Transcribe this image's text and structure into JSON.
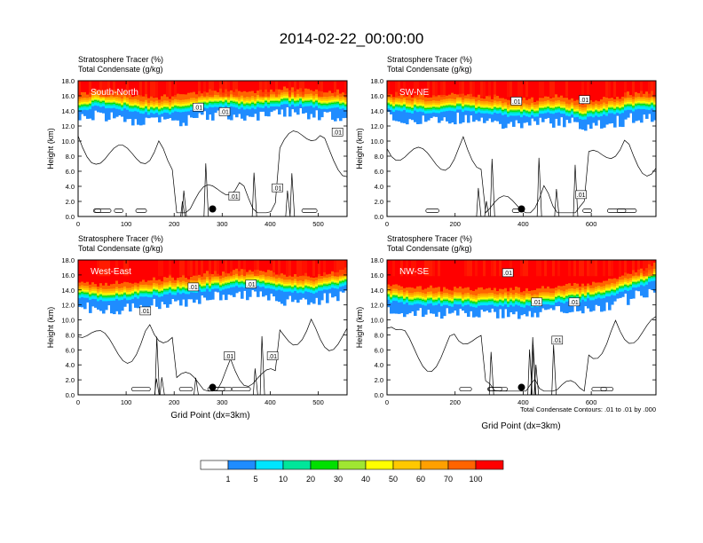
{
  "page": {
    "title": "2014-02-22_00:00:00",
    "contour_note": "Total Condensate Contours: .01 to .01 by .000",
    "y_axis_label": "Height (km)",
    "x_axis_label": "Grid Point (dx=3km)"
  },
  "legend": {
    "colors": [
      "#ffffff",
      "#1f8cff",
      "#00e5ff",
      "#00e69a",
      "#00e000",
      "#a0e632",
      "#ffff00",
      "#ffc800",
      "#ffa000",
      "#ff6400",
      "#ff0000"
    ],
    "labels": [
      "1",
      "5",
      "10",
      "20",
      "30",
      "40",
      "50",
      "60",
      "70",
      "100"
    ]
  },
  "chart_data": [
    {
      "type": "heatmap",
      "label": "South-North",
      "subtitle_line1": "Stratosphere Tracer   (%)",
      "subtitle_line2": "Total Condensate   (g/kg)",
      "ylabel": "Height (km)",
      "xlabel": "",
      "xlim": [
        0,
        560
      ],
      "ylim": [
        0,
        18
      ],
      "xticks": [
        "0",
        "100",
        "200",
        "300",
        "400",
        "500"
      ],
      "xtick_values": [
        0,
        100,
        200,
        300,
        400,
        500
      ],
      "yticks": [
        "0.0",
        "2.0",
        "4.0",
        "6.0",
        "8.0",
        "10.0",
        "12.0",
        "14.0",
        "16.0",
        "18.0"
      ],
      "tracer_front_km": [
        14.2,
        14.8,
        14.5,
        14.2,
        13.8,
        13.9,
        14.1,
        14.6,
        14.8,
        14.5,
        14.6,
        14.8,
        15.0,
        14.8,
        14.5,
        14.5
      ],
      "contour_labels": [
        {
          "text": ".01",
          "x": 250,
          "y": 14.5
        },
        {
          "text": ".01",
          "x": 305,
          "y": 13.9
        },
        {
          "text": ".01",
          "x": 540,
          "y": 11.2
        },
        {
          "text": ".01",
          "x": 325,
          "y": 2.7
        },
        {
          "text": ".01",
          "x": 415,
          "y": 3.8
        }
      ],
      "marker": {
        "x": 280,
        "y": 1.0
      }
    },
    {
      "type": "heatmap",
      "label": "SW-NE",
      "subtitle_line1": "Stratosphere Tracer   (%)",
      "subtitle_line2": "Total Condensate   (g/kg)",
      "ylabel": "Height (km)",
      "xlabel": "",
      "xlim": [
        0,
        790
      ],
      "ylim": [
        0,
        18
      ],
      "xticks": [
        "0",
        "200",
        "400",
        "600"
      ],
      "xtick_values": [
        0,
        200,
        400,
        600
      ],
      "yticks": [
        "0.0",
        "2.0",
        "4.0",
        "6.0",
        "8.0",
        "10.0",
        "12.0",
        "14.0",
        "16.0",
        "18.0"
      ],
      "tracer_front_km": [
        14.3,
        14.1,
        14.0,
        14.1,
        14.2,
        14.0,
        13.9,
        13.5,
        13.4,
        14.0,
        13.7,
        13.2,
        13.5,
        14.0,
        14.3,
        14.4
      ],
      "contour_labels": [
        {
          "text": ".01",
          "x": 380,
          "y": 15.3
        },
        {
          "text": ".01",
          "x": 580,
          "y": 15.5
        },
        {
          "text": ".01",
          "x": 570,
          "y": 2.9
        }
      ],
      "marker": {
        "x": 395,
        "y": 1.0
      }
    },
    {
      "type": "heatmap",
      "label": "West-East",
      "subtitle_line1": "Stratosphere Tracer   (%)",
      "subtitle_line2": "Total Condensate   (g/kg)",
      "ylabel": "Height (km)",
      "xlabel": "Grid Point (dx=3km)",
      "xlim": [
        0,
        560
      ],
      "ylim": [
        0,
        18
      ],
      "xticks": [
        "0",
        "100",
        "200",
        "300",
        "400",
        "500"
      ],
      "xtick_values": [
        0,
        100,
        200,
        300,
        400,
        500
      ],
      "yticks": [
        "0.0",
        "2.0",
        "4.0",
        "6.0",
        "8.0",
        "10.0",
        "12.0",
        "14.0",
        "16.0",
        "18.0"
      ],
      "tracer_front_km": [
        13.2,
        12.8,
        12.9,
        13.0,
        13.3,
        13.6,
        13.8,
        14.1,
        14.3,
        14.6,
        14.8,
        14.3,
        13.9,
        13.8,
        14.2,
        14.8
      ],
      "contour_labels": [
        {
          "text": ".01",
          "x": 240,
          "y": 14.4
        },
        {
          "text": ".01",
          "x": 360,
          "y": 14.8
        },
        {
          "text": ".01",
          "x": 140,
          "y": 11.2
        },
        {
          "text": ".01",
          "x": 315,
          "y": 5.2
        },
        {
          "text": ".01",
          "x": 405,
          "y": 5.2
        }
      ],
      "marker": {
        "x": 280,
        "y": 1.0
      }
    },
    {
      "type": "heatmap",
      "label": "NW-SE",
      "subtitle_line1": "Stratosphere Tracer   (%)",
      "subtitle_line2": "Total Condensate   (g/kg)",
      "ylabel": "Height (km)",
      "xlabel": "Grid Point (dx=3km)",
      "xlim": [
        0,
        790
      ],
      "ylim": [
        0,
        18
      ],
      "xticks": [
        "0",
        "200",
        "400",
        "600"
      ],
      "xtick_values": [
        0,
        200,
        400,
        600
      ],
      "yticks": [
        "0.0",
        "2.0",
        "4.0",
        "6.0",
        "8.0",
        "10.0",
        "12.0",
        "14.0",
        "16.0",
        "18.0"
      ],
      "tracer_front_km": [
        12.7,
        12.4,
        12.3,
        12.2,
        12.1,
        12.0,
        12.1,
        12.1,
        12.0,
        12.3,
        12.6,
        12.8,
        13.2,
        13.8,
        14.5,
        15.4
      ],
      "contour_labels": [
        {
          "text": ".01",
          "x": 355,
          "y": 16.3
        },
        {
          "text": ".01",
          "x": 440,
          "y": 12.4
        },
        {
          "text": ".01",
          "x": 550,
          "y": 12.4
        },
        {
          "text": ".01",
          "x": 500,
          "y": 7.3
        }
      ],
      "marker": {
        "x": 395,
        "y": 1.0
      }
    }
  ]
}
